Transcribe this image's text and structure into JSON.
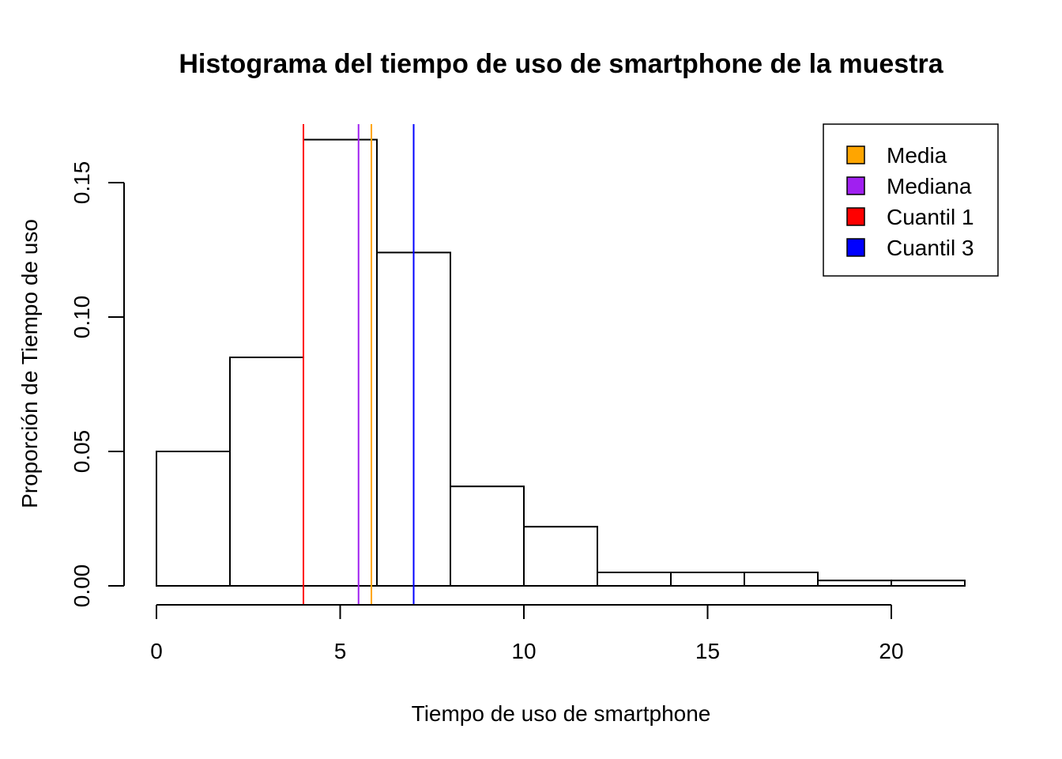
{
  "chart_data": {
    "type": "histogram",
    "title": "Histograma del tiempo de uso de smartphone de la muestra",
    "xlabel": "Tiempo de uso de smartphone",
    "ylabel": "Proporción de Tiempo de uso",
    "bins": [
      {
        "x0": 0,
        "x1": 2,
        "value": 0.05
      },
      {
        "x0": 2,
        "x1": 4,
        "value": 0.085
      },
      {
        "x0": 4,
        "x1": 6,
        "value": 0.166
      },
      {
        "x0": 6,
        "x1": 8,
        "value": 0.124
      },
      {
        "x0": 8,
        "x1": 10,
        "value": 0.037
      },
      {
        "x0": 10,
        "x1": 12,
        "value": 0.022
      },
      {
        "x0": 12,
        "x1": 14,
        "value": 0.005
      },
      {
        "x0": 14,
        "x1": 16,
        "value": 0.005
      },
      {
        "x0": 16,
        "x1": 18,
        "value": 0.005
      },
      {
        "x0": 18,
        "x1": 20,
        "value": 0.002
      },
      {
        "x0": 20,
        "x1": 22,
        "value": 0.002
      }
    ],
    "xlim": [
      0,
      22
    ],
    "ylim": [
      0,
      0.17
    ],
    "xticks": [
      0,
      5,
      10,
      15,
      20
    ],
    "xtick_labels": [
      "0",
      "5",
      "10",
      "15",
      "20"
    ],
    "yticks": [
      0,
      0.05,
      0.1,
      0.15
    ],
    "ytick_labels": [
      "0.00",
      "0.05",
      "0.10",
      "0.15"
    ],
    "reference_lines": [
      {
        "name": "Cuantil 1",
        "x": 4.0,
        "color": "#FF0000"
      },
      {
        "name": "Mediana",
        "x": 5.5,
        "color": "#A020F0"
      },
      {
        "name": "Media",
        "x": 5.85,
        "color": "#FFA500"
      },
      {
        "name": "Cuantil 3",
        "x": 7.0,
        "color": "#0000FF"
      }
    ],
    "legend": {
      "placement": "top-right",
      "items": [
        {
          "label": "Media",
          "color": "#FFA500"
        },
        {
          "label": "Mediana",
          "color": "#A020F0"
        },
        {
          "label": "Cuantil 1",
          "color": "#FF0000"
        },
        {
          "label": "Cuantil 3",
          "color": "#0000FF"
        }
      ]
    },
    "grid": false
  }
}
